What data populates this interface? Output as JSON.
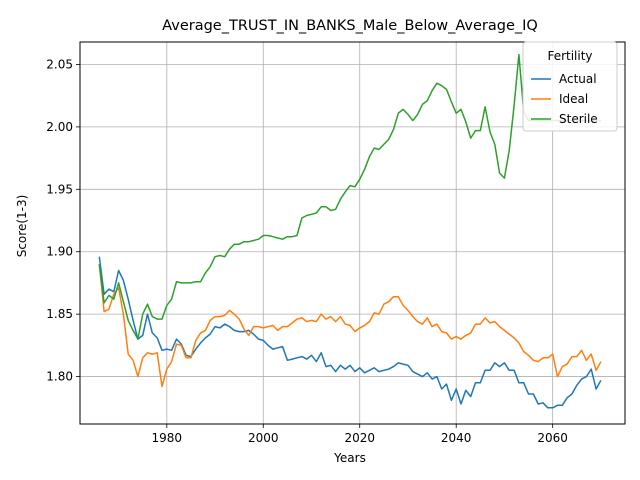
{
  "chart_data": {
    "type": "line",
    "title": "Average_TRUST_IN_BANKS_Male_Below_Average_IQ",
    "xlabel": "Years",
    "ylabel": "Score(1-3)",
    "xlim": [
      1962,
      2075
    ],
    "ylim": [
      1.762,
      2.068
    ],
    "xticks": [
      1980,
      2000,
      2020,
      2040,
      2060
    ],
    "yticks": [
      1.8,
      1.85,
      1.9,
      1.95,
      2.0,
      2.05
    ],
    "grid": true,
    "legend": {
      "title": "Fertility",
      "placement": "top-right"
    },
    "x": [
      1966,
      1967,
      1968,
      1969,
      1970,
      1971,
      1972,
      1973,
      1974,
      1975,
      1976,
      1977,
      1978,
      1979,
      1980,
      1981,
      1982,
      1983,
      1984,
      1985,
      1986,
      1987,
      1988,
      1989,
      1990,
      1991,
      1992,
      1993,
      1994,
      1995,
      1996,
      1997,
      1998,
      1999,
      2000,
      2001,
      2002,
      2003,
      2004,
      2005,
      2006,
      2007,
      2008,
      2009,
      2010,
      2011,
      2012,
      2013,
      2014,
      2015,
      2016,
      2017,
      2018,
      2019,
      2020,
      2021,
      2022,
      2023,
      2024,
      2025,
      2026,
      2027,
      2028,
      2029,
      2030,
      2031,
      2032,
      2033,
      2034,
      2035,
      2036,
      2037,
      2038,
      2039,
      2040,
      2041,
      2042,
      2043,
      2044,
      2045,
      2046,
      2047,
      2048,
      2049,
      2050,
      2051,
      2052,
      2053,
      2054,
      2055,
      2056,
      2057,
      2058,
      2059,
      2060,
      2061,
      2062,
      2063,
      2064,
      2065,
      2066,
      2067,
      2068,
      2069,
      2070
    ],
    "series": [
      {
        "name": "Actual",
        "color": "#1f77b4",
        "values": [
          1.896,
          1.866,
          1.87,
          1.868,
          1.885,
          1.877,
          1.862,
          1.845,
          1.83,
          1.833,
          1.85,
          1.835,
          1.831,
          1.821,
          1.822,
          1.821,
          1.83,
          1.826,
          1.817,
          1.816,
          1.822,
          1.827,
          1.831,
          1.834,
          1.84,
          1.839,
          1.842,
          1.84,
          1.837,
          1.836,
          1.836,
          1.837,
          1.834,
          1.83,
          1.829,
          1.825,
          1.822,
          1.823,
          1.824,
          1.813,
          1.814,
          1.815,
          1.816,
          1.814,
          1.817,
          1.812,
          1.819,
          1.808,
          1.809,
          1.804,
          1.809,
          1.806,
          1.809,
          1.804,
          1.807,
          1.803,
          1.805,
          1.807,
          1.804,
          1.805,
          1.806,
          1.808,
          1.811,
          1.81,
          1.809,
          1.804,
          1.802,
          1.8,
          1.803,
          1.798,
          1.8,
          1.79,
          1.794,
          1.781,
          1.79,
          1.778,
          1.789,
          1.784,
          1.795,
          1.795,
          1.805,
          1.805,
          1.811,
          1.808,
          1.811,
          1.805,
          1.805,
          1.795,
          1.795,
          1.786,
          1.786,
          1.778,
          1.779,
          1.775,
          1.775,
          1.777,
          1.777,
          1.783,
          1.786,
          1.793,
          1.798,
          1.8,
          1.806,
          1.79,
          1.797
        ]
      },
      {
        "name": "Ideal",
        "color": "#ff7f0e",
        "values": [
          1.89,
          1.852,
          1.854,
          1.866,
          1.871,
          1.85,
          1.818,
          1.813,
          1.8,
          1.815,
          1.819,
          1.818,
          1.819,
          1.792,
          1.806,
          1.812,
          1.826,
          1.825,
          1.815,
          1.815,
          1.829,
          1.835,
          1.837,
          1.845,
          1.848,
          1.848,
          1.849,
          1.853,
          1.85,
          1.846,
          1.838,
          1.833,
          1.84,
          1.84,
          1.839,
          1.84,
          1.841,
          1.837,
          1.84,
          1.84,
          1.843,
          1.846,
          1.847,
          1.844,
          1.845,
          1.844,
          1.85,
          1.846,
          1.848,
          1.844,
          1.848,
          1.842,
          1.841,
          1.836,
          1.839,
          1.841,
          1.844,
          1.851,
          1.85,
          1.858,
          1.86,
          1.864,
          1.864,
          1.857,
          1.853,
          1.848,
          1.844,
          1.842,
          1.847,
          1.84,
          1.842,
          1.836,
          1.835,
          1.83,
          1.832,
          1.83,
          1.833,
          1.835,
          1.842,
          1.842,
          1.847,
          1.843,
          1.844,
          1.84,
          1.837,
          1.834,
          1.831,
          1.827,
          1.82,
          1.817,
          1.813,
          1.812,
          1.815,
          1.815,
          1.818,
          1.8,
          1.808,
          1.81,
          1.816,
          1.816,
          1.821,
          1.813,
          1.818,
          1.805,
          1.812
        ]
      },
      {
        "name": "Sterile",
        "color": "#2ca02c",
        "values": [
          1.89,
          1.859,
          1.865,
          1.862,
          1.875,
          1.86,
          1.845,
          1.837,
          1.83,
          1.85,
          1.858,
          1.848,
          1.846,
          1.846,
          1.857,
          1.862,
          1.876,
          1.875,
          1.875,
          1.875,
          1.876,
          1.876,
          1.883,
          1.888,
          1.896,
          1.897,
          1.896,
          1.902,
          1.906,
          1.906,
          1.908,
          1.908,
          1.909,
          1.91,
          1.913,
          1.913,
          1.912,
          1.911,
          1.91,
          1.912,
          1.912,
          1.913,
          1.927,
          1.929,
          1.93,
          1.931,
          1.936,
          1.936,
          1.933,
          1.934,
          1.942,
          1.948,
          1.953,
          1.952,
          1.958,
          1.966,
          1.976,
          1.983,
          1.982,
          1.986,
          1.99,
          1.998,
          2.011,
          2.014,
          2.01,
          2.005,
          2.01,
          2.018,
          2.021,
          2.029,
          2.035,
          2.033,
          2.03,
          2.02,
          2.011,
          2.014,
          2.004,
          1.991,
          1.997,
          1.997,
          2.016,
          1.996,
          1.986,
          1.963,
          1.959,
          1.981,
          2.017,
          2.058,
          2.012,
          2.005,
          2.005,
          2.005,
          2.005,
          2.005,
          2.005,
          2.005,
          2.005,
          2.005,
          2.005,
          2.005,
          2.005,
          2.005,
          2.005,
          2.005,
          2.005
        ]
      }
    ]
  }
}
